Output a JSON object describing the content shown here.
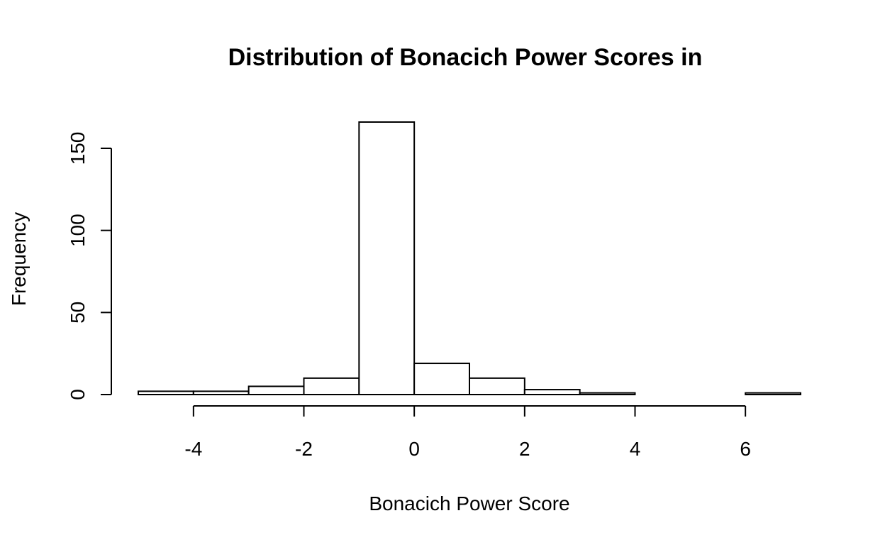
{
  "chart_data": {
    "type": "bar",
    "title": "Distribution of Bonacich Power Scores in",
    "xlabel": "Bonacich Power Score",
    "ylabel": "Frequency",
    "bin_edges": [
      -5,
      -4,
      -3,
      -2,
      -1,
      0,
      1,
      2,
      3,
      4,
      5,
      6,
      7
    ],
    "values": [
      2,
      2,
      5,
      10,
      166,
      19,
      10,
      3,
      1,
      0,
      0,
      1
    ],
    "xlim": [
      -5,
      7
    ],
    "ylim": [
      0,
      166
    ],
    "x_ticks": [
      -4,
      -2,
      0,
      2,
      4,
      6
    ],
    "x_tick_labels": [
      "-4",
      "-2",
      "0",
      "2",
      "4",
      "6"
    ],
    "y_ticks": [
      0,
      50,
      100,
      150
    ],
    "y_tick_labels": [
      "0",
      "50",
      "100",
      "150"
    ],
    "grid": false,
    "legend": "none"
  }
}
